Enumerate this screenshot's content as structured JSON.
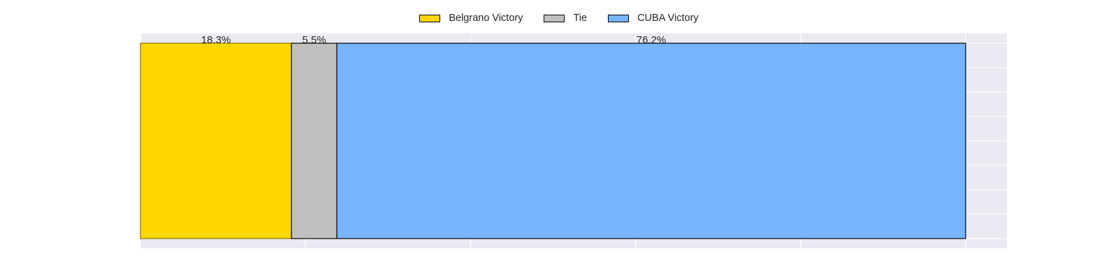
{
  "chart_data": {
    "type": "bar",
    "orientation": "horizontal",
    "stacked": true,
    "categories": [
      ""
    ],
    "series": [
      {
        "name": "Belgrano Victory",
        "values": [
          18.3
        ],
        "label": "18.3%",
        "color": "#FFD700"
      },
      {
        "name": "Tie",
        "values": [
          5.5
        ],
        "label": "5.5%",
        "color": "#C0C0C0"
      },
      {
        "name": "CUBA Victory",
        "values": [
          76.2
        ],
        "label": "76.2%",
        "color": "#77B5FE"
      }
    ],
    "xlim": [
      0,
      105
    ],
    "xticks": [
      0,
      20,
      40,
      60,
      80,
      100
    ],
    "grid": true,
    "legend_position": "top-center",
    "title": "",
    "xlabel": "",
    "ylabel": ""
  }
}
